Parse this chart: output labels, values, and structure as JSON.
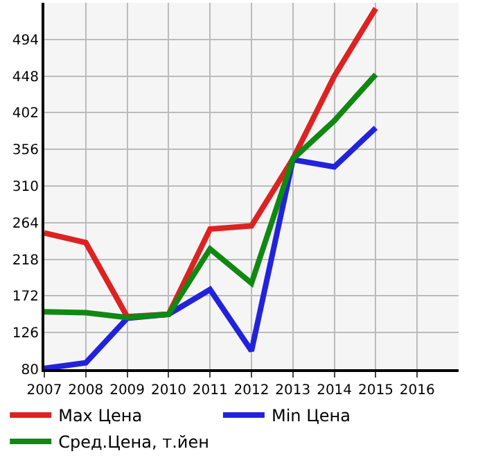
{
  "chart_data": {
    "type": "line",
    "x": [
      2007,
      2008,
      2009,
      2010,
      2011,
      2012,
      2013,
      2014,
      2015
    ],
    "series": [
      {
        "name": "Max Цена",
        "color": "#dd2222",
        "values": [
          251,
          239,
          146,
          149,
          256,
          260,
          344,
          448,
          533
        ]
      },
      {
        "name": "Min Цена",
        "color": "#2222dd",
        "values": [
          81,
          88,
          144,
          149,
          180,
          103,
          343,
          334,
          383
        ]
      },
      {
        "name": "Сред.Цена, т.йен",
        "color": "#118811",
        "values": [
          152,
          151,
          145,
          149,
          231,
          188,
          344,
          392,
          450
        ]
      }
    ],
    "xlim": [
      2007,
      2017
    ],
    "xticks": [
      2007,
      2008,
      2009,
      2010,
      2011,
      2012,
      2013,
      2014,
      2015,
      2016
    ],
    "ylim": [
      80,
      540
    ],
    "yticks": [
      80,
      126,
      172,
      218,
      264,
      310,
      356,
      402,
      448,
      494
    ],
    "grid": true,
    "legend": "bottom",
    "marker": "none",
    "line_style": "solid"
  }
}
